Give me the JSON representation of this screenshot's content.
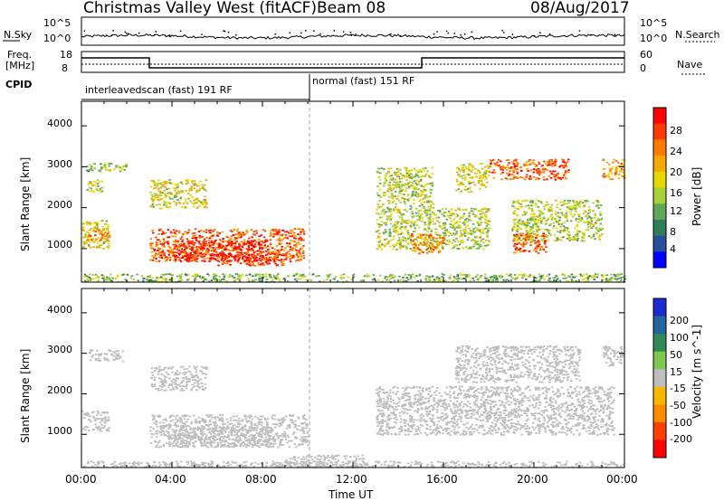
{
  "header": {
    "radar": "Christmas Valley West (fitACF)",
    "beam": "Beam 08",
    "date": "08/Aug/2017"
  },
  "top_panels": {
    "nsky_label": "N.Sky",
    "nsky_ticks": [
      "10^5",
      "10^0"
    ],
    "nsearch_label": "N.Search",
    "nsearch_ticks": [
      "10^5",
      "10^0"
    ],
    "freq_label": "Freq.",
    "freq_unit": "[MHz]",
    "freq_ticks": [
      "18",
      "8"
    ],
    "nave_label": "Nave",
    "nave_ticks": [
      "60",
      "0"
    ],
    "cpid_label": "CPID",
    "cpid_segments": [
      {
        "name": "interleavedscan (fast) 191 RF",
        "start_hour": 0,
        "end_hour": 10
      },
      {
        "name": "normal (fast) 151 RF",
        "start_hour": 10,
        "end_hour": 24
      }
    ],
    "freq_steps": [
      {
        "start_hour": 0,
        "end_hour": 3,
        "level": 0.35
      },
      {
        "start_hour": 3,
        "end_hour": 15,
        "level": 0.85
      },
      {
        "start_hour": 15,
        "end_hour": 24,
        "level": 0.35
      }
    ]
  },
  "axes": {
    "ylabel": "Slant Range [km]",
    "yticks": [
      "4000",
      "3000",
      "2000",
      "1000"
    ],
    "xlabel": "Time UT",
    "xticks": [
      "00:00",
      "04:00",
      "08:00",
      "12:00",
      "16:00",
      "20:00",
      "00:00"
    ]
  },
  "power_colorbar": {
    "label": "Power [dB]",
    "ticks": [
      "28",
      "24",
      "20",
      "16",
      "12",
      "8",
      "4"
    ],
    "colors": [
      "#ff0000",
      "#ff3a00",
      "#ff7a00",
      "#f7a800",
      "#e8d800",
      "#a9cf3a",
      "#5fa85a",
      "#2f7d5a",
      "#2a4f9a",
      "#0000ff"
    ]
  },
  "velocity_colorbar": {
    "label": "Velocity [m s^-1]",
    "ticks": [
      "200",
      "100",
      "50",
      "15",
      "-15",
      "-50",
      "-100",
      "-200"
    ],
    "colors": [
      "#1b2bd0",
      "#2266a0",
      "#2e8b57",
      "#7ec850",
      "#bebebe",
      "#f7b800",
      "#ff8c00",
      "#ff4000",
      "#ff0000"
    ]
  },
  "chart_data": [
    {
      "type": "heatmap",
      "name": "power",
      "x_unit": "hours UT",
      "y_unit": "km",
      "xlim": [
        0,
        24
      ],
      "ylim": [
        180,
        4600
      ],
      "blobs": [
        {
          "x": [
            0.2,
            2.0
          ],
          "y": [
            2900,
            3100
          ],
          "value": 12
        },
        {
          "x": [
            0.1,
            0.9
          ],
          "y": [
            2400,
            2700
          ],
          "value": 14
        },
        {
          "x": [
            0.0,
            1.2
          ],
          "y": [
            1000,
            1700
          ],
          "value": 16
        },
        {
          "x": [
            0.2,
            1.3
          ],
          "y": [
            1200,
            1500
          ],
          "value": 22
        },
        {
          "x": [
            3.0,
            5.5
          ],
          "y": [
            2000,
            2700
          ],
          "value": 16
        },
        {
          "x": [
            3.0,
            9.8
          ],
          "y": [
            700,
            1500
          ],
          "value": 24
        },
        {
          "x": [
            4.0,
            8.0
          ],
          "y": [
            700,
            1200
          ],
          "value": 28
        },
        {
          "x": [
            6.0,
            9.0
          ],
          "y": [
            600,
            900
          ],
          "value": 26
        },
        {
          "x": [
            0.0,
            24.0
          ],
          "y": [
            200,
            400
          ],
          "value": 12
        },
        {
          "x": [
            13.0,
            15.5
          ],
          "y": [
            2000,
            3000
          ],
          "value": 14
        },
        {
          "x": [
            13.0,
            18.0
          ],
          "y": [
            1000,
            2000
          ],
          "value": 14
        },
        {
          "x": [
            14.5,
            16.0
          ],
          "y": [
            900,
            1400
          ],
          "value": 22
        },
        {
          "x": [
            16.5,
            18.0
          ],
          "y": [
            2400,
            3100
          ],
          "value": 16
        },
        {
          "x": [
            18.0,
            21.5
          ],
          "y": [
            2700,
            3200
          ],
          "value": 24
        },
        {
          "x": [
            19.0,
            23.0
          ],
          "y": [
            1200,
            2200
          ],
          "value": 14
        },
        {
          "x": [
            19.0,
            20.5
          ],
          "y": [
            900,
            1400
          ],
          "value": 24
        },
        {
          "x": [
            23.0,
            24.0
          ],
          "y": [
            2700,
            3200
          ],
          "value": 20
        }
      ]
    },
    {
      "type": "heatmap",
      "name": "velocity",
      "x_unit": "hours UT",
      "y_unit": "km",
      "xlim": [
        0,
        24
      ],
      "ylim": [
        180,
        4600
      ],
      "blobs": [
        {
          "x": [
            0.3,
            1.8
          ],
          "y": [
            2800,
            3100
          ],
          "value": 0
        },
        {
          "x": [
            0.0,
            1.2
          ],
          "y": [
            1100,
            1600
          ],
          "value": 0
        },
        {
          "x": [
            3.0,
            5.5
          ],
          "y": [
            2100,
            2700
          ],
          "value": -30
        },
        {
          "x": [
            3.0,
            10.0
          ],
          "y": [
            700,
            1500
          ],
          "value": 0
        },
        {
          "x": [
            4.0,
            8.5
          ],
          "y": [
            700,
            1200
          ],
          "value": -40
        },
        {
          "x": [
            0.0,
            24.0
          ],
          "y": [
            200,
            350
          ],
          "value": 30
        },
        {
          "x": [
            9.0,
            12.5
          ],
          "y": [
            200,
            500
          ],
          "value": -30
        },
        {
          "x": [
            13.0,
            23.5
          ],
          "y": [
            1000,
            2200
          ],
          "value": 0
        },
        {
          "x": [
            16.5,
            22.0
          ],
          "y": [
            2300,
            3200
          ],
          "value": 0
        },
        {
          "x": [
            23.0,
            24.0
          ],
          "y": [
            2700,
            3200
          ],
          "value": 0
        }
      ]
    }
  ]
}
